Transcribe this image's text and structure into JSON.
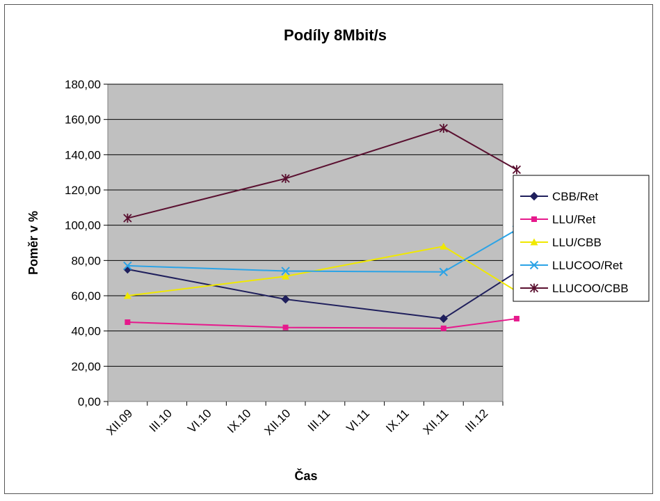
{
  "chart_data": {
    "type": "line",
    "title": "Podíly 8Mbit/s",
    "xlabel": "Čas",
    "ylabel": "Poměr v %",
    "ylim": [
      0,
      180
    ],
    "yticks": [
      "0,00",
      "20,00",
      "40,00",
      "60,00",
      "80,00",
      "100,00",
      "120,00",
      "140,00",
      "160,00",
      "180,00"
    ],
    "categories": [
      "XII.09",
      "III.10",
      "VI.10",
      "IX.10",
      "XII.10",
      "III.11",
      "VI.11",
      "IX.11",
      "XII.11",
      "III.12"
    ],
    "grid": "horizontal",
    "legend_position": "right",
    "series": [
      {
        "name": "CBB/Ret",
        "color": "#1f1f5c",
        "marker": "diamond",
        "points": [
          {
            "x": "XII.09",
            "y": 75
          },
          {
            "x": "XII.10",
            "y": 58
          },
          {
            "x": "XII.11",
            "y": 47
          },
          {
            "x": "III.12+",
            "y": 73.5
          }
        ]
      },
      {
        "name": "LLU/Ret",
        "color": "#e6198c",
        "marker": "square",
        "points": [
          {
            "x": "XII.09",
            "y": 45
          },
          {
            "x": "XII.10",
            "y": 42
          },
          {
            "x": "XII.11",
            "y": 41.5
          },
          {
            "x": "III.12+",
            "y": 47
          }
        ]
      },
      {
        "name": "LLU/CBB",
        "color": "#f0e800",
        "marker": "triangle",
        "points": [
          {
            "x": "XII.09",
            "y": 60
          },
          {
            "x": "XII.10",
            "y": 71
          },
          {
            "x": "XII.11",
            "y": 88
          },
          {
            "x": "III.12+",
            "y": 62.5
          }
        ]
      },
      {
        "name": "LLUCOO/Ret",
        "color": "#2ba3e6",
        "marker": "x",
        "points": [
          {
            "x": "XII.09",
            "y": 77
          },
          {
            "x": "XII.10",
            "y": 74
          },
          {
            "x": "XII.11",
            "y": 73.5
          },
          {
            "x": "III.12+",
            "y": 97.5
          }
        ]
      },
      {
        "name": "LLUCOO/CBB",
        "color": "#5a1030",
        "marker": "star",
        "points": [
          {
            "x": "XII.09",
            "y": 104
          },
          {
            "x": "XII.10",
            "y": 126.5
          },
          {
            "x": "XII.11",
            "y": 155
          },
          {
            "x": "III.12+",
            "y": 131.5
          }
        ]
      }
    ]
  }
}
